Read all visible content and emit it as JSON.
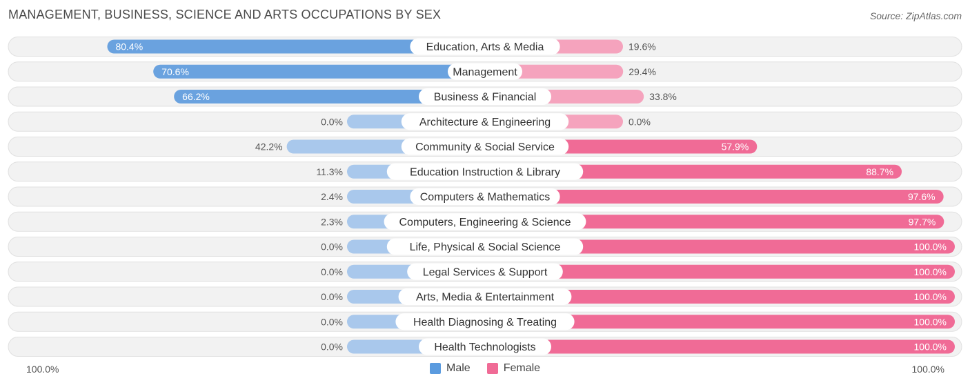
{
  "header": {
    "title": "MANAGEMENT, BUSINESS, SCIENCE AND ARTS OCCUPATIONS BY SEX",
    "source": "Source: ZipAtlas.com"
  },
  "axis": {
    "left_label": "100.0%",
    "right_label": "100.0%"
  },
  "legend": {
    "male_label": "Male",
    "female_label": "Female"
  },
  "colors": {
    "male_strong": "#6aa2df",
    "male_light": "#a9c8ec",
    "female_strong": "#f06b96",
    "female_light": "#f5a3bd",
    "row_bg": "#f2f2f2"
  },
  "chart_data": {
    "type": "bar",
    "orientation": "diverging-horizontal",
    "categories": [
      "Education, Arts & Media",
      "Management",
      "Business & Financial",
      "Architecture & Engineering",
      "Community & Social Service",
      "Education Instruction & Library",
      "Computers & Mathematics",
      "Computers, Engineering & Science",
      "Life, Physical & Social Science",
      "Legal Services & Support",
      "Arts, Media & Entertainment",
      "Health Diagnosing & Treating",
      "Health Technologists"
    ],
    "series": [
      {
        "name": "Male",
        "values": [
          80.4,
          70.6,
          66.2,
          0.0,
          42.2,
          11.3,
          2.4,
          2.3,
          0.0,
          0.0,
          0.0,
          0.0,
          0.0
        ],
        "labels": [
          "80.4%",
          "70.6%",
          "66.2%",
          "0.0%",
          "42.2%",
          "11.3%",
          "2.4%",
          "2.3%",
          "0.0%",
          "0.0%",
          "0.0%",
          "0.0%",
          "0.0%"
        ]
      },
      {
        "name": "Female",
        "values": [
          19.6,
          29.4,
          33.8,
          0.0,
          57.9,
          88.7,
          97.6,
          97.7,
          100.0,
          100.0,
          100.0,
          100.0,
          100.0
        ],
        "labels": [
          "19.6%",
          "29.4%",
          "33.8%",
          "0.0%",
          "57.9%",
          "88.7%",
          "97.6%",
          "97.7%",
          "100.0%",
          "100.0%",
          "100.0%",
          "100.0%",
          "100.0%"
        ]
      }
    ],
    "xlim": [
      -100,
      100
    ],
    "legend_position": "bottom-center"
  }
}
